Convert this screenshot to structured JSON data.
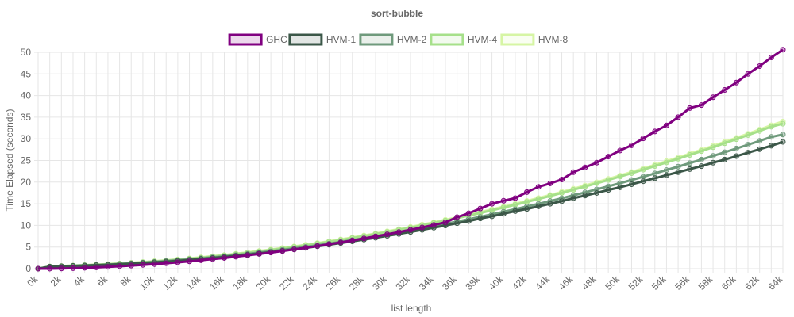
{
  "chart_data": {
    "type": "line",
    "title": "sort-bubble",
    "xlabel": "list length",
    "ylabel": "Time Elapsed (seconds)",
    "ylim": [
      0,
      50
    ],
    "yticks": [
      0,
      5,
      10,
      15,
      20,
      25,
      30,
      35,
      40,
      45,
      50
    ],
    "grid": true,
    "legend_position": "top",
    "categories": [
      "0k",
      "1k",
      "2k",
      "3k",
      "4k",
      "5k",
      "6k",
      "7k",
      "8k",
      "9k",
      "10k",
      "11k",
      "12k",
      "13k",
      "14k",
      "15k",
      "16k",
      "17k",
      "18k",
      "19k",
      "20k",
      "21k",
      "22k",
      "23k",
      "24k",
      "25k",
      "26k",
      "27k",
      "28k",
      "29k",
      "30k",
      "31k",
      "32k",
      "33k",
      "34k",
      "35k",
      "36k",
      "37k",
      "38k",
      "39k",
      "40k",
      "41k",
      "42k",
      "43k",
      "44k",
      "45k",
      "46k",
      "47k",
      "48k",
      "49k",
      "50k",
      "51k",
      "52k",
      "53k",
      "54k",
      "55k",
      "56k",
      "57k",
      "58k",
      "59k",
      "60k",
      "61k",
      "62k",
      "63k",
      "64k"
    ],
    "series": [
      {
        "name": "GHC",
        "color": "#800080",
        "values": [
          0,
          0.01,
          0.05,
          0.11,
          0.2,
          0.3,
          0.42,
          0.56,
          0.71,
          0.88,
          1.06,
          1.26,
          1.47,
          1.7,
          1.95,
          2.21,
          2.48,
          2.77,
          3.08,
          3.4,
          3.73,
          4.08,
          4.45,
          4.83,
          5.23,
          5.65,
          6.08,
          6.52,
          6.98,
          7.46,
          7.95,
          8.46,
          8.99,
          9.53,
          10.1,
          10.7,
          11.9,
          12.8,
          13.9,
          15.0,
          15.7,
          16.3,
          17.7,
          18.9,
          19.7,
          20.6,
          22.3,
          23.4,
          24.5,
          25.9,
          27.3,
          28.5,
          30.1,
          31.7,
          33.1,
          35.0,
          37.1,
          37.8,
          39.6,
          41.3,
          43.0,
          45.0,
          46.8,
          48.8,
          50.6
        ]
      },
      {
        "name": "HVM-1",
        "color": "#3b5748",
        "values": [
          0,
          0.46,
          0.55,
          0.63,
          0.71,
          0.8,
          0.9,
          1.02,
          1.15,
          1.3,
          1.46,
          1.63,
          1.82,
          2.02,
          2.24,
          2.47,
          2.71,
          2.97,
          3.24,
          3.53,
          3.83,
          4.14,
          4.47,
          4.81,
          5.17,
          5.54,
          5.92,
          6.32,
          6.73,
          7.15,
          7.59,
          8.04,
          8.5,
          8.98,
          9.47,
          9.97,
          10.5,
          11.0,
          11.6,
          12.1,
          12.7,
          13.3,
          13.8,
          14.4,
          15.0,
          15.6,
          16.3,
          16.9,
          17.5,
          18.2,
          18.8,
          19.5,
          20.2,
          20.9,
          21.6,
          22.3,
          23.0,
          23.7,
          24.5,
          25.2,
          26.0,
          26.8,
          27.6,
          28.4,
          29.3
        ]
      },
      {
        "name": "HVM-2",
        "color": "#6f9a7c",
        "values": [
          0,
          0.48,
          0.57,
          0.66,
          0.75,
          0.85,
          0.96,
          1.09,
          1.23,
          1.39,
          1.56,
          1.74,
          1.94,
          2.15,
          2.38,
          2.62,
          2.87,
          3.14,
          3.42,
          3.72,
          4.03,
          4.35,
          4.69,
          5.04,
          5.41,
          5.79,
          6.18,
          6.59,
          7.01,
          7.45,
          7.9,
          8.36,
          8.84,
          9.33,
          9.83,
          10.35,
          10.88,
          11.42,
          11.98,
          12.55,
          13.14,
          13.74,
          14.35,
          14.98,
          15.62,
          16.27,
          16.94,
          17.62,
          18.32,
          19.03,
          19.75,
          20.49,
          21.24,
          22.01,
          22.79,
          23.58,
          24.39,
          25.21,
          26.05,
          26.9,
          27.76,
          28.64,
          29.53,
          30.44,
          31.0
        ]
      },
      {
        "name": "HVM-4",
        "color": "#a6e08a",
        "values": [
          0,
          0.5,
          0.6,
          0.7,
          0.8,
          0.91,
          1.03,
          1.17,
          1.32,
          1.49,
          1.67,
          1.87,
          2.08,
          2.31,
          2.55,
          2.81,
          3.08,
          3.37,
          3.67,
          3.99,
          4.32,
          4.67,
          5.03,
          5.41,
          5.8,
          6.21,
          6.63,
          7.07,
          7.52,
          7.99,
          8.47,
          8.97,
          9.48,
          10.01,
          10.55,
          11.11,
          11.68,
          12.27,
          12.87,
          13.49,
          14.12,
          14.77,
          15.43,
          16.11,
          16.8,
          17.51,
          18.23,
          18.97,
          19.72,
          20.49,
          21.27,
          22.07,
          22.88,
          23.71,
          24.55,
          25.41,
          26.28,
          27.17,
          28.07,
          28.99,
          29.92,
          30.87,
          31.83,
          32.81,
          33.5
        ]
      },
      {
        "name": "HVM-8",
        "color": "#d6f5a4",
        "values": [
          0,
          0.52,
          0.62,
          0.72,
          0.83,
          0.94,
          1.07,
          1.21,
          1.37,
          1.54,
          1.73,
          1.93,
          2.15,
          2.38,
          2.63,
          2.89,
          3.17,
          3.46,
          3.77,
          4.09,
          4.43,
          4.78,
          5.15,
          5.53,
          5.93,
          6.34,
          6.77,
          7.21,
          7.67,
          8.14,
          8.63,
          9.13,
          9.65,
          10.18,
          10.73,
          11.29,
          11.87,
          12.46,
          13.07,
          13.69,
          14.33,
          14.98,
          15.65,
          16.33,
          17.03,
          17.74,
          18.47,
          19.21,
          19.97,
          20.74,
          21.53,
          22.33,
          23.15,
          23.98,
          24.83,
          25.69,
          26.57,
          27.46,
          28.37,
          29.29,
          30.23,
          31.18,
          32.15,
          33.13,
          34.0
        ]
      }
    ]
  }
}
